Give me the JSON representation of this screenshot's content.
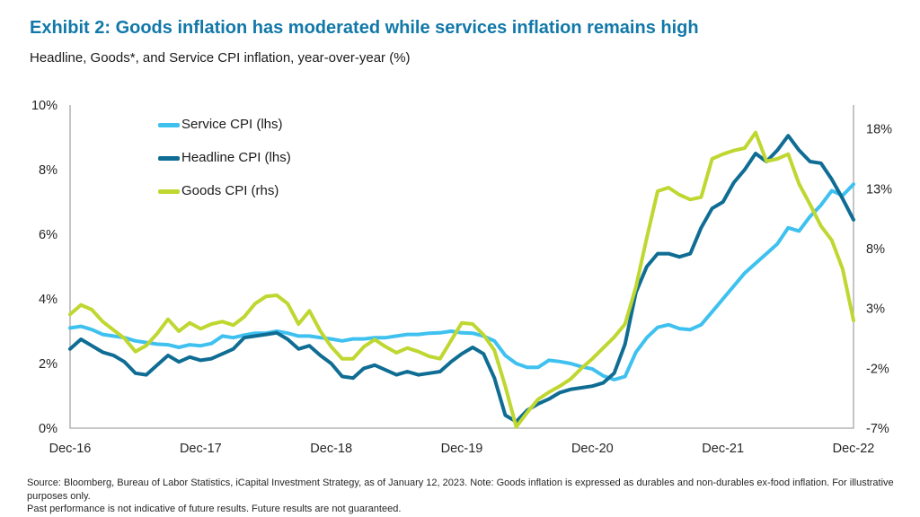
{
  "header": {
    "title": "Exhibit 2: Goods inflation has moderated while services inflation remains high",
    "subtitle": "Headline, Goods*, and Service CPI inflation, year-over-year (%)"
  },
  "palette": {
    "title_accent": "#1178A9",
    "service_line": "#3FC1F0",
    "headline_line": "#0F6D94",
    "goods_line": "#BFD730",
    "axis_line": "#A6A6A6",
    "tick_text": "#262626"
  },
  "chart_data": {
    "type": "line",
    "frequency": "monthly",
    "x_tick_labels": [
      "Dec-16",
      "Dec-17",
      "Dec-18",
      "Dec-19",
      "Dec-20",
      "Dec-21",
      "Dec-22"
    ],
    "axes": {
      "left": {
        "min": 0,
        "max": 10,
        "tick_values": [
          10,
          8,
          6,
          4,
          2,
          0
        ],
        "tick_labels": [
          "10%",
          "8%",
          "6%",
          "4%",
          "2%",
          "0%"
        ]
      },
      "right": {
        "min": -7,
        "max": 20,
        "tick_values": [
          18,
          13,
          8,
          3,
          -2,
          -7
        ],
        "tick_labels": [
          "18%",
          "13%",
          "8%",
          "3%",
          "-2%",
          "-7%"
        ]
      }
    },
    "legend_position": "top-left-inside",
    "grid": false,
    "series": [
      {
        "name": "Service CPI (lhs)",
        "axis": "left",
        "color": "#3FC1F0",
        "values": [
          3.1,
          3.15,
          3.05,
          2.9,
          2.85,
          2.8,
          2.7,
          2.65,
          2.6,
          2.58,
          2.5,
          2.58,
          2.55,
          2.62,
          2.85,
          2.8,
          2.88,
          2.94,
          2.94,
          3.0,
          2.94,
          2.85,
          2.85,
          2.8,
          2.76,
          2.7,
          2.76,
          2.76,
          2.8,
          2.8,
          2.85,
          2.9,
          2.9,
          2.94,
          2.95,
          3.0,
          2.95,
          2.94,
          2.85,
          2.7,
          2.25,
          2.0,
          1.88,
          1.88,
          2.1,
          2.06,
          2.0,
          1.9,
          1.83,
          1.62,
          1.5,
          1.6,
          2.35,
          2.8,
          3.12,
          3.2,
          3.08,
          3.05,
          3.2,
          3.6,
          4.0,
          4.4,
          4.8,
          5.1,
          5.4,
          5.7,
          6.2,
          6.1,
          6.55,
          6.9,
          7.35,
          7.2,
          7.55
        ]
      },
      {
        "name": "Headline CPI (lhs)",
        "axis": "left",
        "color": "#0F6D94",
        "values": [
          2.45,
          2.75,
          2.55,
          2.35,
          2.25,
          2.05,
          1.7,
          1.65,
          1.95,
          2.25,
          2.05,
          2.2,
          2.1,
          2.15,
          2.3,
          2.45,
          2.8,
          2.85,
          2.9,
          2.95,
          2.75,
          2.45,
          2.55,
          2.25,
          2.0,
          1.6,
          1.55,
          1.85,
          1.95,
          1.8,
          1.65,
          1.75,
          1.65,
          1.7,
          1.75,
          2.05,
          2.3,
          2.5,
          2.3,
          1.55,
          0.4,
          0.2,
          0.55,
          0.75,
          0.9,
          1.1,
          1.2,
          1.25,
          1.3,
          1.4,
          1.7,
          2.6,
          4.2,
          5.0,
          5.4,
          5.4,
          5.3,
          5.4,
          6.2,
          6.8,
          7.0,
          7.6,
          8.0,
          8.5,
          8.25,
          8.6,
          9.05,
          8.6,
          8.25,
          8.2,
          7.7,
          7.1,
          6.45
        ]
      },
      {
        "name": "Goods CPI (rhs)",
        "axis": "right",
        "color": "#BFD730",
        "values": [
          2.5,
          3.3,
          2.9,
          1.9,
          1.2,
          0.5,
          -0.6,
          -0.1,
          0.9,
          2.1,
          1.1,
          1.8,
          1.3,
          1.7,
          1.9,
          1.6,
          2.3,
          3.4,
          4.0,
          4.1,
          3.4,
          1.7,
          2.8,
          1.1,
          -0.2,
          -1.2,
          -1.2,
          -0.2,
          0.4,
          -0.2,
          -0.7,
          -0.3,
          -0.6,
          -1.0,
          -1.2,
          0.3,
          1.8,
          1.7,
          0.8,
          -0.5,
          -3.5,
          -6.9,
          -5.7,
          -4.6,
          -4.0,
          -3.5,
          -2.9,
          -2.0,
          -1.2,
          -0.3,
          0.6,
          1.7,
          4.8,
          8.9,
          12.8,
          13.1,
          12.5,
          12.1,
          12.3,
          15.5,
          15.9,
          16.2,
          16.4,
          17.7,
          15.3,
          15.5,
          15.9,
          13.4,
          11.7,
          9.9,
          8.7,
          6.3,
          2.0
        ]
      }
    ]
  },
  "footer": {
    "line1": "Source: Bloomberg, Bureau of Labor Statistics, iCapital Investment Strategy, as of January 12, 2023. Note: Goods inflation is expressed as durables and non-durables ex-food inflation. For illustrative purposes only.",
    "line2": "Past performance is not indicative of future results. Future results are not guaranteed."
  }
}
